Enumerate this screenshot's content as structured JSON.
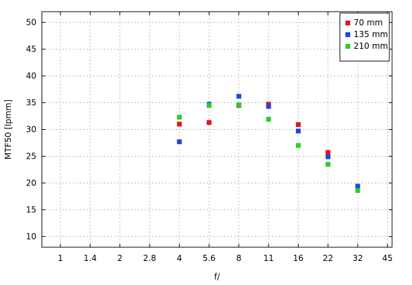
{
  "chart_data": {
    "type": "scatter",
    "title": "",
    "xlabel": "f/",
    "ylabel": "MTF50 [lpmm]",
    "x_categories": [
      "1",
      "1.4",
      "2",
      "2.8",
      "4",
      "5.6",
      "8",
      "11",
      "16",
      "22",
      "32",
      "45"
    ],
    "ylim": [
      8,
      52
    ],
    "yticks": [
      10,
      15,
      20,
      25,
      30,
      35,
      40,
      45,
      50
    ],
    "grid": true,
    "legend_position": "top-right",
    "series": [
      {
        "name": "70 mm",
        "color": "#e8141c",
        "points": [
          {
            "x": "4",
            "y": 31.0
          },
          {
            "x": "5.6",
            "y": 31.3
          },
          {
            "x": "8",
            "y": 34.5
          },
          {
            "x": "11",
            "y": 34.7
          },
          {
            "x": "16",
            "y": 30.9
          },
          {
            "x": "22",
            "y": 25.7
          },
          {
            "x": "32",
            "y": 19.3
          }
        ]
      },
      {
        "name": "135 mm",
        "color": "#1f46e0",
        "points": [
          {
            "x": "4",
            "y": 27.7
          },
          {
            "x": "5.6",
            "y": 34.7
          },
          {
            "x": "8",
            "y": 36.2
          },
          {
            "x": "11",
            "y": 34.3
          },
          {
            "x": "16",
            "y": 29.7
          },
          {
            "x": "22",
            "y": 24.9
          },
          {
            "x": "32",
            "y": 19.4
          }
        ]
      },
      {
        "name": "210 mm",
        "color": "#2ecb2e",
        "points": [
          {
            "x": "4",
            "y": 32.3
          },
          {
            "x": "5.6",
            "y": 34.5
          },
          {
            "x": "8",
            "y": 34.6
          },
          {
            "x": "11",
            "y": 31.9
          },
          {
            "x": "16",
            "y": 27.0
          },
          {
            "x": "22",
            "y": 23.5
          },
          {
            "x": "32",
            "y": 18.6
          }
        ]
      }
    ]
  }
}
